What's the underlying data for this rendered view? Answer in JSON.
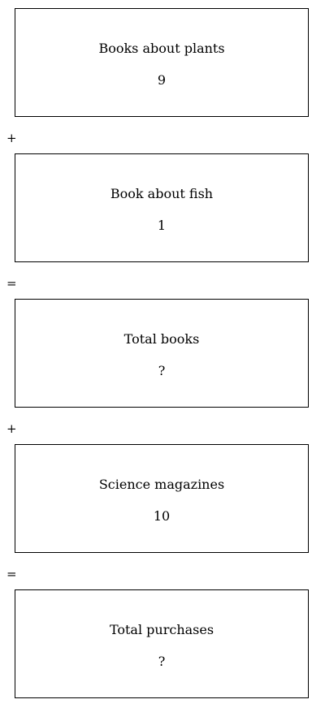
{
  "boxes": [
    {
      "label": "Books about plants",
      "value": "9"
    },
    {
      "label": "Book about fish",
      "value": "1"
    },
    {
      "label": "Total books",
      "value": "?"
    },
    {
      "label": "Science magazines",
      "value": "10"
    },
    {
      "label": "Total purchases",
      "value": "?"
    }
  ],
  "operators": [
    "+",
    "=",
    "+",
    "="
  ]
}
